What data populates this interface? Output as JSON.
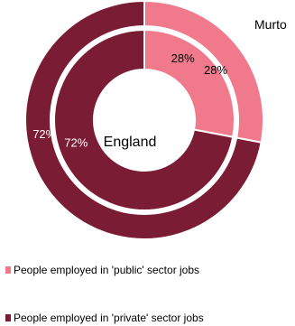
{
  "chart_data": {
    "type": "pie",
    "subtype": "nested-donut",
    "center_label": "England",
    "corner_label": "Murto",
    "categories": [
      "People employed in 'public' sector jobs",
      "People employed in 'private' sector jobs"
    ],
    "colors": [
      "#f07a8c",
      "#7b1c35"
    ],
    "rings": [
      {
        "position": "outer",
        "values": [
          28,
          72
        ],
        "labels": [
          "28%",
          "72%"
        ]
      },
      {
        "position": "inner",
        "values": [
          28,
          72
        ],
        "labels": [
          "28%",
          "72%"
        ]
      }
    ],
    "legend": {
      "placement": "bottom-left",
      "entries": [
        "People employed in 'public' sector jobs",
        "People employed in 'private' sector jobs"
      ]
    }
  }
}
